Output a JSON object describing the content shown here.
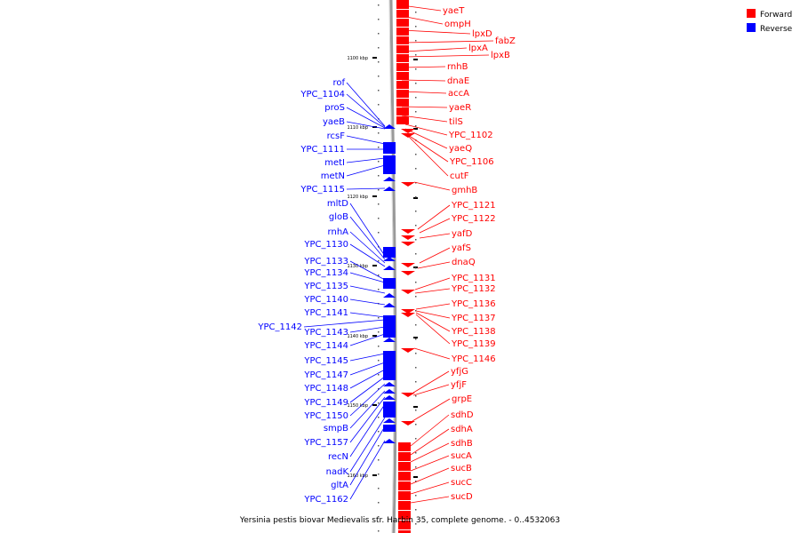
{
  "caption": "Yersinia pestis biovar Medievalis str. Harbin 35, complete genome. - 0..4532063",
  "legend": {
    "items": [
      {
        "label": "Forward",
        "color": "#ff0000"
      },
      {
        "label": "Reverse",
        "color": "#0000ff"
      }
    ]
  },
  "colors": {
    "forward": "#ff0000",
    "reverse": "#0000ff",
    "backbone": "#888888"
  },
  "ticks": [
    "1100 kbp",
    "1110 kbp",
    "1120 kbp",
    "1130 kbp",
    "1140 kbp",
    "1150 kbp",
    "1160 kbp"
  ],
  "forward_genes": [
    "yaeT",
    "ompH",
    "lpxD",
    "fabZ",
    "lpxA",
    "lpxB",
    "rnhB",
    "dnaE",
    "accA",
    "yaeR",
    "tilS",
    "YPC_1102",
    "yaeQ",
    "YPC_1106",
    "cutF",
    "gmhB",
    "YPC_1121",
    "YPC_1122",
    "yafD",
    "yafS",
    "dnaQ",
    "YPC_1131",
    "YPC_1132",
    "YPC_1136",
    "YPC_1137",
    "YPC_1138",
    "YPC_1139",
    "YPC_1146",
    "yfjG",
    "yfjF",
    "grpE",
    "sdhD",
    "sdhA",
    "sdhB",
    "sucA",
    "sucB",
    "sucC",
    "sucD"
  ],
  "reverse_genes": [
    "rof",
    "YPC_1104",
    "proS",
    "yaeB",
    "rcsF",
    "YPC_1111",
    "metI",
    "metN",
    "YPC_1115",
    "mltD",
    "gloB",
    "rnhA",
    "YPC_1130",
    "YPC_1133",
    "YPC_1134",
    "YPC_1135",
    "YPC_1140",
    "YPC_1141",
    "YPC_1142",
    "YPC_1143",
    "YPC_1144",
    "YPC_1145",
    "YPC_1147",
    "YPC_1148",
    "YPC_1149",
    "YPC_1150",
    "smpB",
    "YPC_1157",
    "recN",
    "nadK",
    "gltA",
    "YPC_1162"
  ]
}
